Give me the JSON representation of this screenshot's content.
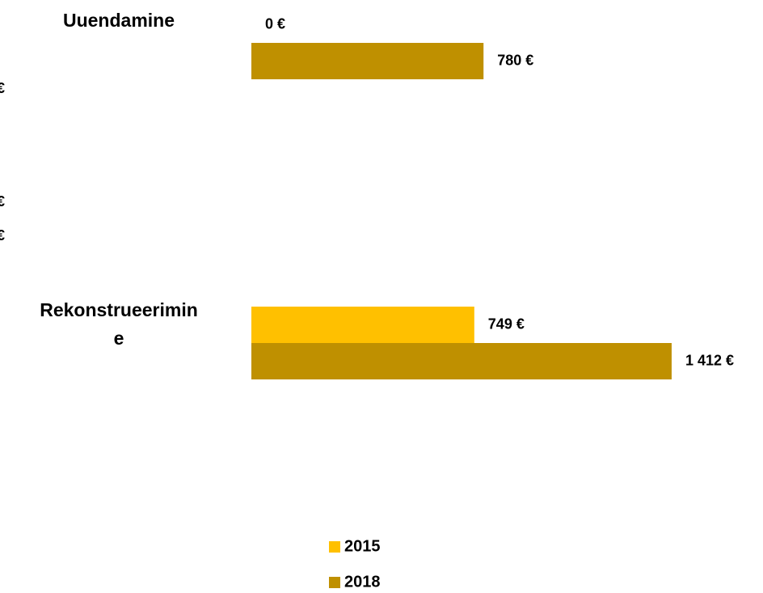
{
  "chart_data": {
    "type": "hbar",
    "categories": [
      "Uuendamine",
      "Rekonstrueerimine"
    ],
    "series": [
      {
        "name": "2015",
        "color": "#FFC000",
        "values": [
          0,
          749
        ],
        "value_labels": [
          "0 €",
          "749 €"
        ]
      },
      {
        "name": "2018",
        "color": "#BF9000",
        "values": [
          780,
          1412
        ],
        "value_labels": [
          "780 €",
          "1 412 €"
        ]
      }
    ],
    "xlim": [
      0,
      1700
    ],
    "annotations": [
      "€",
      "€",
      "€"
    ]
  }
}
